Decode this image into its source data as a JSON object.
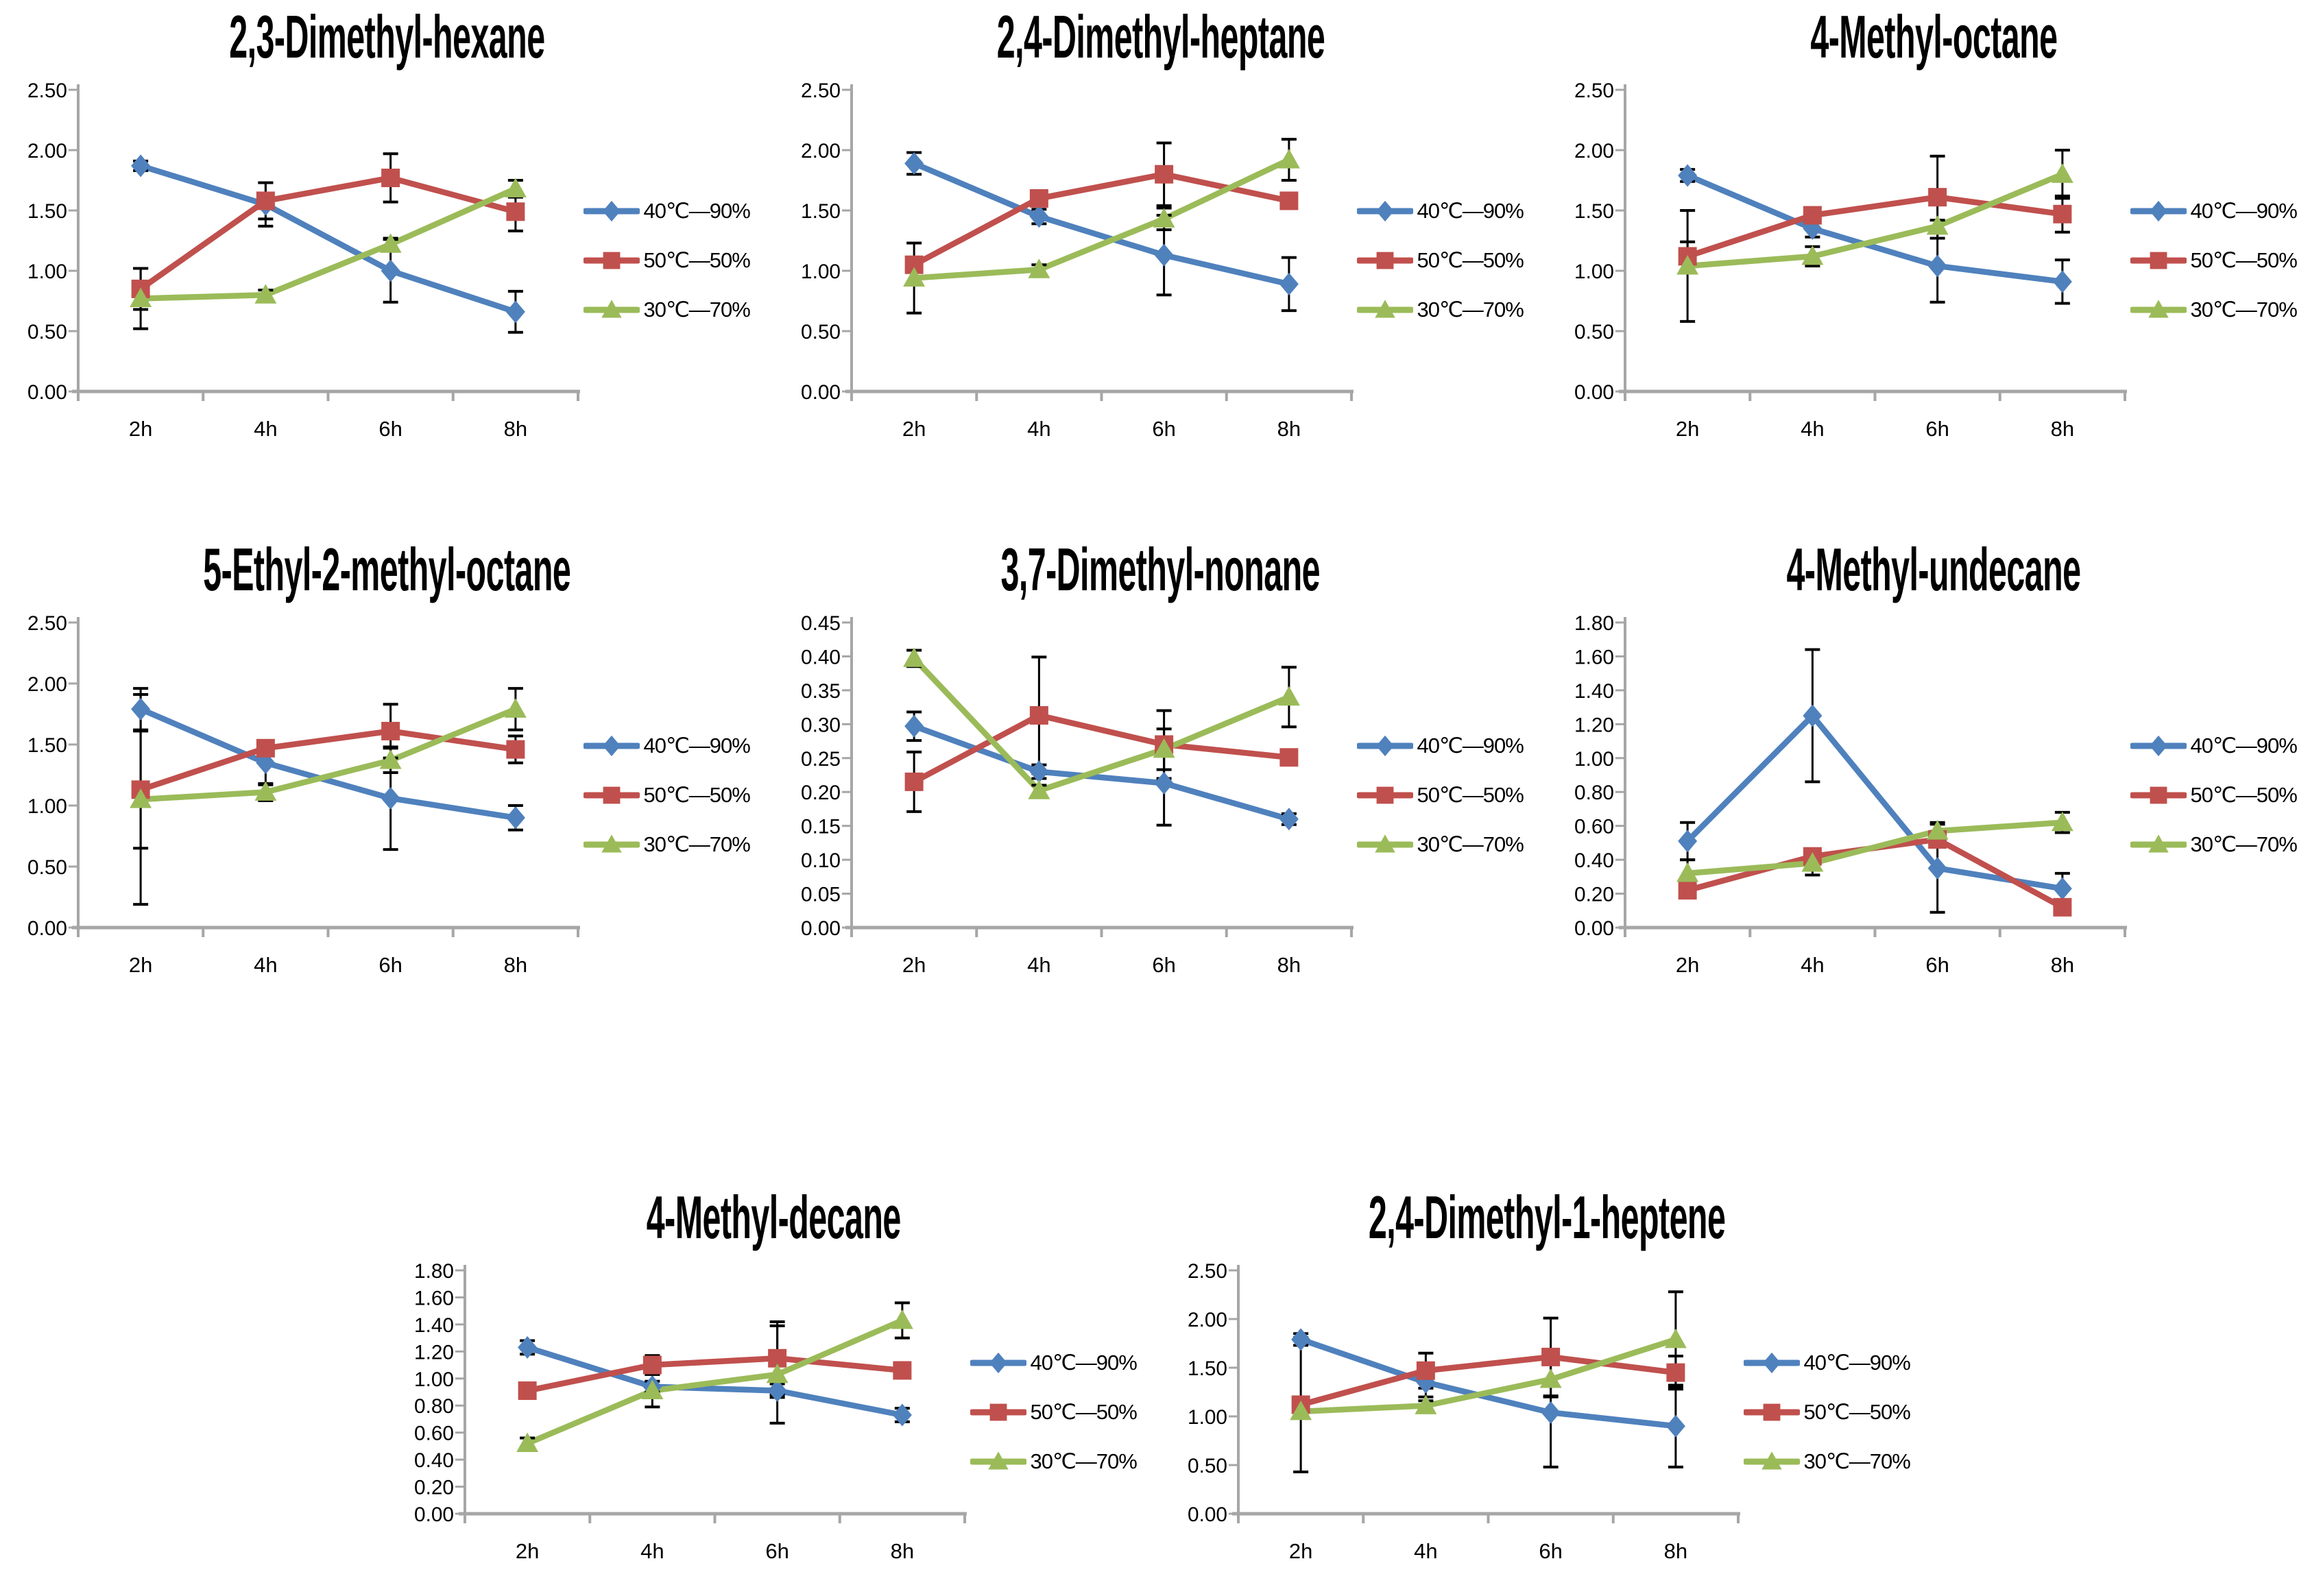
{
  "figure": {
    "legend_labels": [
      "40℃—90%",
      "50℃—50%",
      "30℃—70%"
    ],
    "series_colors": [
      "#4F81BD",
      "#C0504D",
      "#9BBB59"
    ],
    "series_markers": [
      "diamond",
      "square",
      "triangle"
    ],
    "axis_color": "#A6A6A6",
    "error_bar_color": "#000000",
    "background_color": "#FFFFFF"
  },
  "chart_data": [
    {
      "type": "line",
      "title": "2,3-Dimethyl-hexane",
      "categories": [
        "2h",
        "4h",
        "6h",
        "8h"
      ],
      "ylim": [
        0,
        2.5
      ],
      "ystep": 0.5,
      "grid": false,
      "legend_position": "right",
      "series": [
        {
          "name": "40℃—90%",
          "color": "#4F81BD",
          "marker": "diamond",
          "values": [
            1.87,
            1.55,
            1.0,
            0.66
          ],
          "errors": [
            0.04,
            0.18,
            0.26,
            0.17
          ]
        },
        {
          "name": "50℃—50%",
          "color": "#C0504D",
          "marker": "square",
          "values": [
            0.85,
            1.58,
            1.77,
            1.49
          ],
          "errors": [
            0.17,
            0.15,
            0.2,
            0.16
          ]
        },
        {
          "name": "30℃—70%",
          "color": "#9BBB59",
          "marker": "triangle",
          "values": [
            0.77,
            0.8,
            1.22,
            1.68
          ],
          "errors": [
            0.25,
            0.04,
            0.05,
            0.07
          ]
        }
      ]
    },
    {
      "type": "line",
      "title": "2,4-Dimethyl-heptane",
      "categories": [
        "2h",
        "4h",
        "6h",
        "8h"
      ],
      "ylim": [
        0,
        2.5
      ],
      "ystep": 0.5,
      "grid": false,
      "legend_position": "right",
      "series": [
        {
          "name": "40℃—90%",
          "color": "#4F81BD",
          "marker": "diamond",
          "values": [
            1.89,
            1.45,
            1.13,
            0.89
          ],
          "errors": [
            0.09,
            0.06,
            0.33,
            0.22
          ]
        },
        {
          "name": "50℃—50%",
          "color": "#C0504D",
          "marker": "square",
          "values": [
            1.05,
            1.6,
            1.8,
            1.58
          ],
          "errors": [
            0.06,
            0.05,
            0.26,
            0.05
          ]
        },
        {
          "name": "30℃—70%",
          "color": "#9BBB59",
          "marker": "triangle",
          "values": [
            0.94,
            1.01,
            1.43,
            1.92
          ],
          "errors": [
            0.29,
            0.04,
            0.09,
            0.17
          ]
        }
      ]
    },
    {
      "type": "line",
      "title": "4-Methyl-octane",
      "categories": [
        "2h",
        "4h",
        "6h",
        "8h"
      ],
      "ylim": [
        0,
        2.5
      ],
      "ystep": 0.5,
      "grid": false,
      "legend_position": "right",
      "series": [
        {
          "name": "40℃—90%",
          "color": "#4F81BD",
          "marker": "diamond",
          "values": [
            1.79,
            1.35,
            1.04,
            0.91
          ],
          "errors": [
            0.05,
            0.07,
            0.3,
            0.18
          ]
        },
        {
          "name": "50℃—50%",
          "color": "#C0504D",
          "marker": "square",
          "values": [
            1.12,
            1.46,
            1.61,
            1.47
          ],
          "errors": [
            0.12,
            0.04,
            0.34,
            0.15
          ]
        },
        {
          "name": "30℃—70%",
          "color": "#9BBB59",
          "marker": "triangle",
          "values": [
            1.04,
            1.12,
            1.37,
            1.8
          ],
          "errors": [
            0.46,
            0.08,
            0.05,
            0.2
          ]
        }
      ]
    },
    {
      "type": "line",
      "title": "5-Ethyl-2-methyl-octane",
      "categories": [
        "2h",
        "4h",
        "6h",
        "8h"
      ],
      "ylim": [
        0,
        2.5
      ],
      "ystep": 0.5,
      "grid": false,
      "legend_position": "right",
      "series": [
        {
          "name": "40℃—90%",
          "color": "#4F81BD",
          "marker": "diamond",
          "values": [
            1.79,
            1.35,
            1.06,
            0.9
          ],
          "errors": [
            0.17,
            0.18,
            0.42,
            0.1
          ]
        },
        {
          "name": "50℃—50%",
          "color": "#C0504D",
          "marker": "square",
          "values": [
            1.13,
            1.47,
            1.61,
            1.46
          ],
          "errors": [
            0.48,
            0.05,
            0.22,
            0.11
          ]
        },
        {
          "name": "30℃—70%",
          "color": "#9BBB59",
          "marker": "triangle",
          "values": [
            1.05,
            1.11,
            1.37,
            1.79
          ],
          "errors": [
            0.86,
            0.07,
            0.1,
            0.17
          ]
        }
      ]
    },
    {
      "type": "line",
      "title": "3,7-Dimethyl-nonane",
      "categories": [
        "2h",
        "4h",
        "6h",
        "8h"
      ],
      "ylim": [
        0,
        0.45
      ],
      "ystep": 0.05,
      "grid": false,
      "legend_position": "right",
      "series": [
        {
          "name": "40℃—90%",
          "color": "#4F81BD",
          "marker": "diamond",
          "values": [
            0.297,
            0.23,
            0.213,
            0.16
          ],
          "errors": [
            0.021,
            0.01,
            0.062,
            0.008
          ]
        },
        {
          "name": "50℃—50%",
          "color": "#C0504D",
          "marker": "square",
          "values": [
            0.215,
            0.313,
            0.27,
            0.251
          ],
          "errors": [
            0.044,
            0.086,
            0.05,
            0.008
          ]
        },
        {
          "name": "30℃—70%",
          "color": "#9BBB59",
          "marker": "triangle",
          "values": [
            0.397,
            0.202,
            0.263,
            0.34
          ],
          "errors": [
            0.012,
            0.008,
            0.03,
            0.044
          ]
        }
      ]
    },
    {
      "type": "line",
      "title": "4-Methyl-undecane",
      "categories": [
        "2h",
        "4h",
        "6h",
        "8h"
      ],
      "ylim": [
        0,
        1.8
      ],
      "ystep": 0.2,
      "grid": false,
      "legend_position": "right",
      "series": [
        {
          "name": "40℃—90%",
          "color": "#4F81BD",
          "marker": "diamond",
          "values": [
            0.51,
            1.25,
            0.35,
            0.23
          ],
          "errors": [
            0.11,
            0.39,
            0.26,
            0.09
          ]
        },
        {
          "name": "50℃—50%",
          "color": "#C0504D",
          "marker": "square",
          "values": [
            0.22,
            0.42,
            0.52,
            0.12
          ],
          "errors": [
            0.03,
            0.04,
            0.03,
            0.04
          ]
        },
        {
          "name": "30℃—70%",
          "color": "#9BBB59",
          "marker": "triangle",
          "values": [
            0.32,
            0.38,
            0.57,
            0.62
          ],
          "errors": [
            0.08,
            0.07,
            0.05,
            0.06
          ]
        }
      ]
    },
    {
      "type": "line",
      "title": "4-Methyl-decane",
      "categories": [
        "2h",
        "4h",
        "6h",
        "8h"
      ],
      "ylim": [
        0,
        1.8
      ],
      "ystep": 0.2,
      "grid": false,
      "legend_position": "right",
      "series": [
        {
          "name": "40℃—90%",
          "color": "#4F81BD",
          "marker": "diamond",
          "values": [
            1.23,
            0.94,
            0.91,
            0.73
          ],
          "errors": [
            0.05,
            0.04,
            0.05,
            0.05
          ]
        },
        {
          "name": "50℃—50%",
          "color": "#C0504D",
          "marker": "square",
          "values": [
            0.91,
            1.1,
            1.15,
            1.06
          ],
          "errors": [
            0.04,
            0.07,
            0.27,
            0.03
          ]
        },
        {
          "name": "30℃—70%",
          "color": "#9BBB59",
          "marker": "triangle",
          "values": [
            0.52,
            0.91,
            1.03,
            1.43
          ],
          "errors": [
            0.04,
            0.12,
            0.36,
            0.13
          ]
        }
      ]
    },
    {
      "type": "line",
      "title": "2,4-Dimethyl-1-heptene",
      "categories": [
        "2h",
        "4h",
        "6h",
        "8h"
      ],
      "ylim": [
        0,
        2.5
      ],
      "ystep": 0.5,
      "grid": false,
      "legend_position": "right",
      "series": [
        {
          "name": "40℃—90%",
          "color": "#4F81BD",
          "marker": "diamond",
          "values": [
            1.79,
            1.35,
            1.04,
            0.9
          ],
          "errors": [
            0.06,
            0.15,
            0.56,
            0.42
          ]
        },
        {
          "name": "50℃—50%",
          "color": "#C0504D",
          "marker": "square",
          "values": [
            1.12,
            1.47,
            1.61,
            1.45
          ],
          "errors": [
            0.69,
            0.18,
            0.4,
            0.17
          ]
        },
        {
          "name": "30℃—70%",
          "color": "#9BBB59",
          "marker": "triangle",
          "values": [
            1.05,
            1.11,
            1.38,
            1.79
          ],
          "errors": [
            0.05,
            0.05,
            0.18,
            0.49
          ]
        }
      ]
    }
  ]
}
